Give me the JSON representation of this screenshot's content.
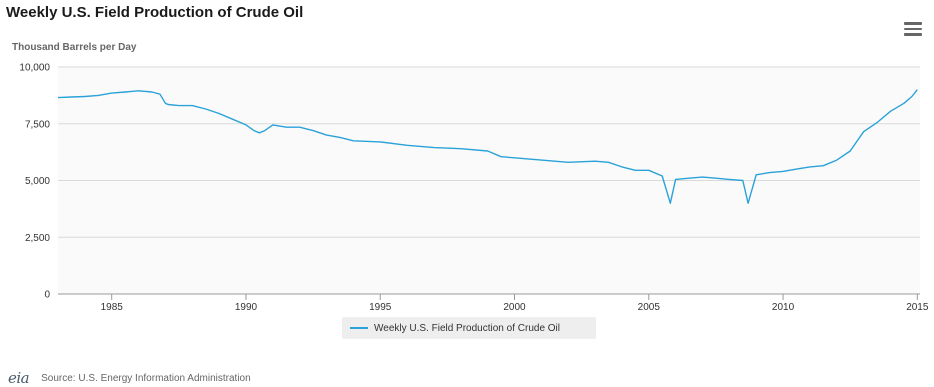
{
  "header": {
    "title": "Weekly U.S. Field Production of Crude Oil",
    "menu_icon": "hamburger-menu-icon"
  },
  "colors": {
    "series": "#2aa2d9",
    "grid": "#d9d9d9",
    "axis": "#666666",
    "plot_bg": "#fafafa"
  },
  "chart_data": {
    "type": "line",
    "title": "Weekly U.S. Field Production of Crude Oil",
    "ylabel": "Thousand Barrels per Day",
    "xlabel": "",
    "xlim": [
      1983,
      2015.1
    ],
    "ylim": [
      0,
      10000
    ],
    "x_ticks": [
      1985,
      1990,
      1995,
      2000,
      2005,
      2010,
      2015
    ],
    "x_tick_labels": [
      "1985",
      "1990",
      "1995",
      "2000",
      "2005",
      "2010",
      "2015"
    ],
    "y_ticks": [
      0,
      2500,
      5000,
      7500,
      10000
    ],
    "y_tick_labels": [
      "0",
      "2,500",
      "5,000",
      "7,500",
      "10,000"
    ],
    "grid": true,
    "legend_position": "bottom-center",
    "series": [
      {
        "name": "Weekly U.S. Field Production of Crude Oil",
        "x": [
          1983.0,
          1983.5,
          1984.0,
          1984.5,
          1985.0,
          1985.5,
          1986.0,
          1986.5,
          1986.8,
          1987.0,
          1987.1,
          1987.5,
          1988.0,
          1988.5,
          1989.0,
          1989.5,
          1990.0,
          1990.3,
          1990.5,
          1990.7,
          1991.0,
          1991.5,
          1992.0,
          1992.5,
          1993.0,
          1993.5,
          1994.0,
          1995.0,
          1996.0,
          1997.0,
          1998.0,
          1999.0,
          1999.5,
          2000.0,
          2001.0,
          2002.0,
          2003.0,
          2003.5,
          2004.0,
          2004.5,
          2005.0,
          2005.5,
          2005.8,
          2006.0,
          2006.5,
          2007.0,
          2007.5,
          2008.0,
          2008.5,
          2008.7,
          2009.0,
          2009.5,
          2010.0,
          2010.5,
          2011.0,
          2011.5,
          2012.0,
          2012.5,
          2013.0,
          2013.5,
          2014.0,
          2014.5,
          2014.8,
          2015.0
        ],
        "y": [
          8650,
          8680,
          8700,
          8750,
          8850,
          8900,
          8950,
          8900,
          8800,
          8400,
          8350,
          8300,
          8300,
          8150,
          7950,
          7700,
          7450,
          7200,
          7100,
          7200,
          7450,
          7350,
          7350,
          7200,
          7000,
          6900,
          6750,
          6700,
          6550,
          6450,
          6400,
          6300,
          6050,
          6000,
          5900,
          5800,
          5850,
          5800,
          5600,
          5450,
          5450,
          5200,
          4000,
          5050,
          5100,
          5150,
          5100,
          5050,
          5000,
          4000,
          5250,
          5350,
          5400,
          5500,
          5600,
          5650,
          5900,
          6300,
          7150,
          7550,
          8050,
          8400,
          8700,
          9000
        ]
      }
    ]
  },
  "legend": {
    "label": "Weekly U.S. Field Production of Crude Oil"
  },
  "footer": {
    "logo_text": "eia",
    "source": "Source: U.S. Energy Information Administration"
  }
}
